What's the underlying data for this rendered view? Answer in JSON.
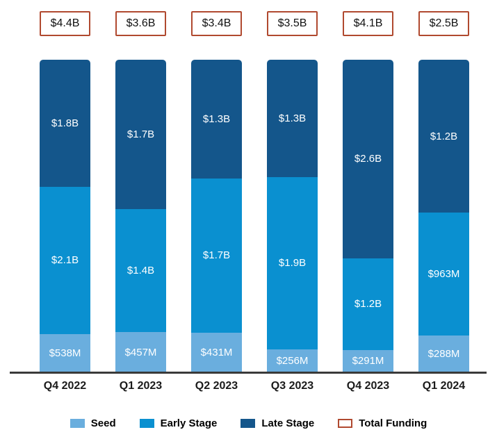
{
  "chart_data": {
    "type": "bar",
    "subtype": "stacked-equal-height",
    "title": "",
    "xlabel": "",
    "ylabel": "",
    "grid": false,
    "legend_position": "bottom",
    "categories": [
      "Q4 2022",
      "Q1 2023",
      "Q2 2023",
      "Q3 2023",
      "Q4 2023",
      "Q1 2024"
    ],
    "totals": {
      "name": "Total Funding",
      "labels": [
        "$4.4B",
        "$3.6B",
        "$3.4B",
        "$3.5B",
        "$4.1B",
        "$2.5B"
      ],
      "values_billion": [
        4.4,
        3.6,
        3.4,
        3.5,
        4.1,
        2.5
      ]
    },
    "series": [
      {
        "name": "Seed",
        "color": "#6aaede",
        "values_million": [
          538,
          457,
          431,
          256,
          291,
          288
        ],
        "labels": [
          "$538M",
          "$457M",
          "$431M",
          "$256M",
          "$291M",
          "$288M"
        ]
      },
      {
        "name": "Early Stage",
        "color": "#0a90d0",
        "values_million": [
          2100,
          1400,
          1700,
          1900,
          1200,
          963
        ],
        "labels": [
          "$2.1B",
          "$1.4B",
          "$1.7B",
          "$1.9B",
          "$1.2B",
          "$963M"
        ]
      },
      {
        "name": "Late Stage",
        "color": "#14568b",
        "values_million": [
          1800,
          1700,
          1300,
          1300,
          2600,
          1200
        ],
        "labels": [
          "$1.8B",
          "$1.7B",
          "$1.3B",
          "$1.3B",
          "$2.6B",
          "$1.2B"
        ]
      }
    ],
    "legend": [
      {
        "label": "Seed",
        "swatch": "seed-color"
      },
      {
        "label": "Early Stage",
        "swatch": "early-stage-color"
      },
      {
        "label": "Late Stage",
        "swatch": "late-stage-color"
      },
      {
        "label": "Total Funding",
        "swatch": "outlined-box"
      }
    ],
    "colors": {
      "seed": "#6aaede",
      "early_stage": "#0a90d0",
      "late_stage": "#14568b",
      "total_box_border": "#b0492f",
      "axis_line": "#3a3a3a",
      "bar_label_text": "#ffffff"
    }
  }
}
